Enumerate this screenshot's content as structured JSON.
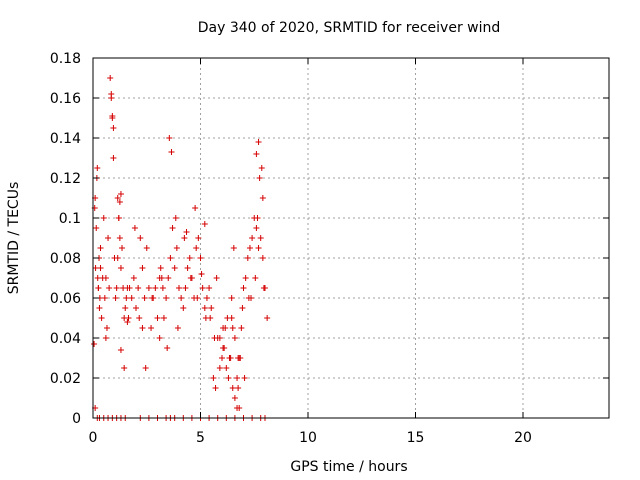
{
  "chart_data": {
    "type": "scatter",
    "title": "Day 340 of 2020, SRMTID for receiver wind",
    "xlabel": "GPS time / hours",
    "ylabel": "SRMTID / TECUs",
    "xlim": [
      0,
      24
    ],
    "ylim": [
      0,
      0.18
    ],
    "xticks": [
      0,
      5,
      10,
      15,
      20
    ],
    "yticks": [
      0,
      0.02,
      0.04,
      0.06,
      0.08,
      0.1,
      0.12,
      0.14,
      0.16,
      0.18
    ],
    "xtick_labels": [
      "0",
      "5",
      "10",
      "15",
      "20"
    ],
    "ytick_labels": [
      "0",
      "0.02",
      "0.04",
      "0.06",
      "0.08",
      "0.1",
      "0.12",
      "0.14",
      "0.16",
      "0.18"
    ],
    "grid": true,
    "marker": "plus",
    "color": "#d40000",
    "series": [
      {
        "x": [
          0.05,
          0.08,
          0.1,
          0.12,
          0.15,
          0.18,
          0.2,
          0.22,
          0.25,
          0.28,
          0.3,
          0.32,
          0.35,
          0.4,
          0.45,
          0.5,
          0.55,
          0.6,
          0.65,
          0.7,
          0.75,
          0.8,
          0.85,
          0.9,
          0.95,
          1.0,
          1.05,
          1.1,
          1.15,
          1.2,
          1.25,
          1.3,
          1.35,
          1.4,
          1.45,
          1.5,
          1.55,
          1.6,
          1.65,
          1.7,
          1.8,
          1.9,
          2.0,
          2.1,
          2.2,
          2.3,
          2.4,
          2.5,
          2.6,
          2.7,
          2.8,
          2.9,
          3.0,
          3.1,
          3.2,
          3.3,
          3.4,
          3.5,
          3.6,
          3.7,
          3.8,
          3.9,
          4.0,
          4.1,
          4.2,
          4.3,
          4.4,
          4.5,
          4.6,
          4.7,
          4.8,
          4.9,
          5.0,
          5.1,
          5.2,
          5.3,
          5.4,
          5.5,
          5.6,
          5.7,
          5.8,
          5.9,
          6.0,
          6.1,
          6.2,
          6.3,
          6.4,
          6.5,
          6.6,
          6.7,
          6.8,
          6.9,
          7.0,
          7.1,
          7.2,
          7.3,
          7.4,
          7.5,
          7.6,
          7.7,
          7.8,
          7.9,
          8.0,
          8.1,
          0.1,
          0.2,
          0.3,
          0.5,
          0.7,
          0.9,
          1.1,
          1.3,
          1.5,
          2.2,
          2.6,
          3.0,
          3.4,
          3.6,
          3.8,
          4.2,
          4.6,
          5.0,
          5.4,
          5.8,
          6.2,
          6.6,
          7.0,
          7.4,
          7.8,
          8.0,
          0.85,
          0.9,
          0.95,
          1.2,
          1.25,
          1.3,
          3.55,
          3.65,
          7.6,
          7.7,
          7.75,
          7.85,
          1.3,
          1.45,
          2.3,
          3.25,
          4.75,
          5.2,
          5.75,
          5.9,
          6.05,
          6.25,
          6.45,
          6.55,
          6.7,
          6.85,
          6.5,
          6.6,
          6.75,
          6.8,
          3.15,
          3.85,
          4.35,
          5.05,
          5.45,
          6.05,
          6.35,
          6.95,
          7.25,
          7.55,
          7.95,
          0.25,
          0.35,
          0.6,
          1.15,
          1.6,
          1.95,
          2.15,
          2.45,
          2.75,
          3.1,
          3.45,
          3.95,
          4.25,
          4.55,
          4.85,
          5.25,
          5.65,
          6.15,
          6.45,
          6.75,
          7.05,
          7.35,
          7.65,
          7.9
        ],
        "y": [
          0.037,
          0.105,
          0.11,
          0.075,
          0.095,
          0.12,
          0.125,
          0.07,
          0.065,
          0.08,
          0.055,
          0.06,
          0.075,
          0.05,
          0.07,
          0.1,
          0.06,
          0.07,
          0.045,
          0.09,
          0.065,
          0.17,
          0.16,
          0.15,
          0.13,
          0.08,
          0.06,
          0.065,
          0.11,
          0.1,
          0.09,
          0.075,
          0.085,
          0.065,
          0.05,
          0.055,
          0.06,
          0.065,
          0.05,
          0.065,
          0.06,
          0.07,
          0.055,
          0.065,
          0.09,
          0.045,
          0.06,
          0.085,
          0.065,
          0.045,
          0.06,
          0.065,
          0.05,
          0.04,
          0.07,
          0.05,
          0.06,
          0.07,
          0.08,
          0.095,
          0.075,
          0.085,
          0.065,
          0.06,
          0.055,
          0.065,
          0.075,
          0.08,
          0.07,
          0.06,
          0.085,
          0.09,
          0.08,
          0.065,
          0.055,
          0.06,
          0.065,
          0.055,
          0.02,
          0.015,
          0.04,
          0.025,
          0.03,
          0.035,
          0.025,
          0.02,
          0.03,
          0.015,
          0.01,
          0.005,
          0.03,
          0.045,
          0.065,
          0.07,
          0.08,
          0.085,
          0.09,
          0.1,
          0.095,
          0.085,
          0.09,
          0.08,
          0.065,
          0.05,
          0.005,
          0.0,
          0.0,
          0.0,
          0.0,
          0.0,
          0.0,
          0.0,
          0.0,
          0.0,
          0.0,
          0.0,
          0.0,
          0.0,
          0.0,
          0.0,
          0.0,
          0.0,
          0.0,
          0.0,
          0.0,
          0.0,
          0.0,
          0.0,
          0.0,
          0.0,
          0.162,
          0.151,
          0.145,
          0.1,
          0.108,
          0.112,
          0.14,
          0.133,
          0.132,
          0.138,
          0.12,
          0.125,
          0.034,
          0.025,
          0.075,
          0.065,
          0.105,
          0.097,
          0.07,
          0.04,
          0.045,
          0.05,
          0.06,
          0.085,
          0.02,
          0.03,
          0.045,
          0.04,
          0.015,
          0.005,
          0.075,
          0.1,
          0.093,
          0.072,
          0.05,
          0.035,
          0.03,
          0.055,
          0.06,
          0.07,
          0.065,
          0.065,
          0.085,
          0.04,
          0.08,
          0.048,
          0.095,
          0.05,
          0.025,
          0.06,
          0.07,
          0.035,
          0.045,
          0.09,
          0.07,
          0.06,
          0.05,
          0.04,
          0.045,
          0.05,
          0.03,
          0.02,
          0.06,
          0.1,
          0.11
        ]
      }
    ]
  }
}
